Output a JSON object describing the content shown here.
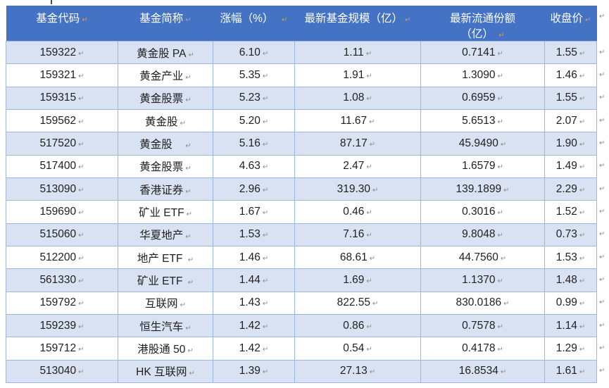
{
  "table": {
    "mark": "↵",
    "columns": [
      {
        "label": "基金代码"
      },
      {
        "label": "基金简称"
      },
      {
        "label": "涨幅（%）  "
      },
      {
        "label": "最新基金规模（亿）"
      },
      {
        "label": "最新流通份额\n（亿） "
      },
      {
        "label": "收盘价"
      }
    ],
    "rows": [
      [
        "159322",
        "黄金股 PA",
        "6.10",
        "1.11",
        "0.7141",
        "1.55"
      ],
      [
        "159321",
        "黄金产业",
        "5.35",
        "1.91",
        "1.3090",
        "1.46"
      ],
      [
        "159315",
        "黄金股票",
        "5.23",
        "1.08",
        "0.6959",
        "1.55"
      ],
      [
        "159562",
        "黄金股",
        "5.20",
        "11.67",
        "5.6513",
        "2.07"
      ],
      [
        "517520",
        "黄金股　",
        "5.16",
        "87.17",
        "45.9490",
        "1.90"
      ],
      [
        "517400",
        "黄金股票",
        "4.63",
        "2.47",
        "1.6579",
        "1.49"
      ],
      [
        "513090",
        "香港证券",
        "2.96",
        "319.30",
        "139.1899",
        "2.29"
      ],
      [
        "159690",
        "矿业 ETF",
        "1.67",
        "0.46",
        "0.3016",
        "1.52"
      ],
      [
        "515060",
        "华夏地产",
        "1.53",
        "7.16",
        "9.8048",
        "0.73"
      ],
      [
        "512200",
        "地产 ETF ",
        "1.46",
        "68.61",
        "44.7560",
        "1.53"
      ],
      [
        "561330",
        "矿业 ETF ",
        "1.44",
        "1.69",
        "1.1370",
        "1.48"
      ],
      [
        "159792",
        "互联网",
        "1.43",
        "822.55",
        "830.0186",
        "0.99"
      ],
      [
        "159239",
        "恒生汽车",
        "1.42",
        "0.86",
        "0.7578",
        "1.14"
      ],
      [
        "159712",
        "港股通 50",
        "1.42",
        "0.54",
        "0.4178",
        "1.29"
      ],
      [
        "513040",
        "HK 互联网",
        "1.39",
        "27.13",
        "16.8534",
        "1.61"
      ]
    ]
  },
  "colors": {
    "header_bg": "#4472C4",
    "header_text": "#FFFFFF",
    "band": "#D9E2F3",
    "border": "#9FB7DF",
    "text": "#1F1F1F",
    "mark_gray": "#8C8C8C",
    "mark_gold": "#C9A253",
    "page_bg": "#FFFFFF"
  }
}
